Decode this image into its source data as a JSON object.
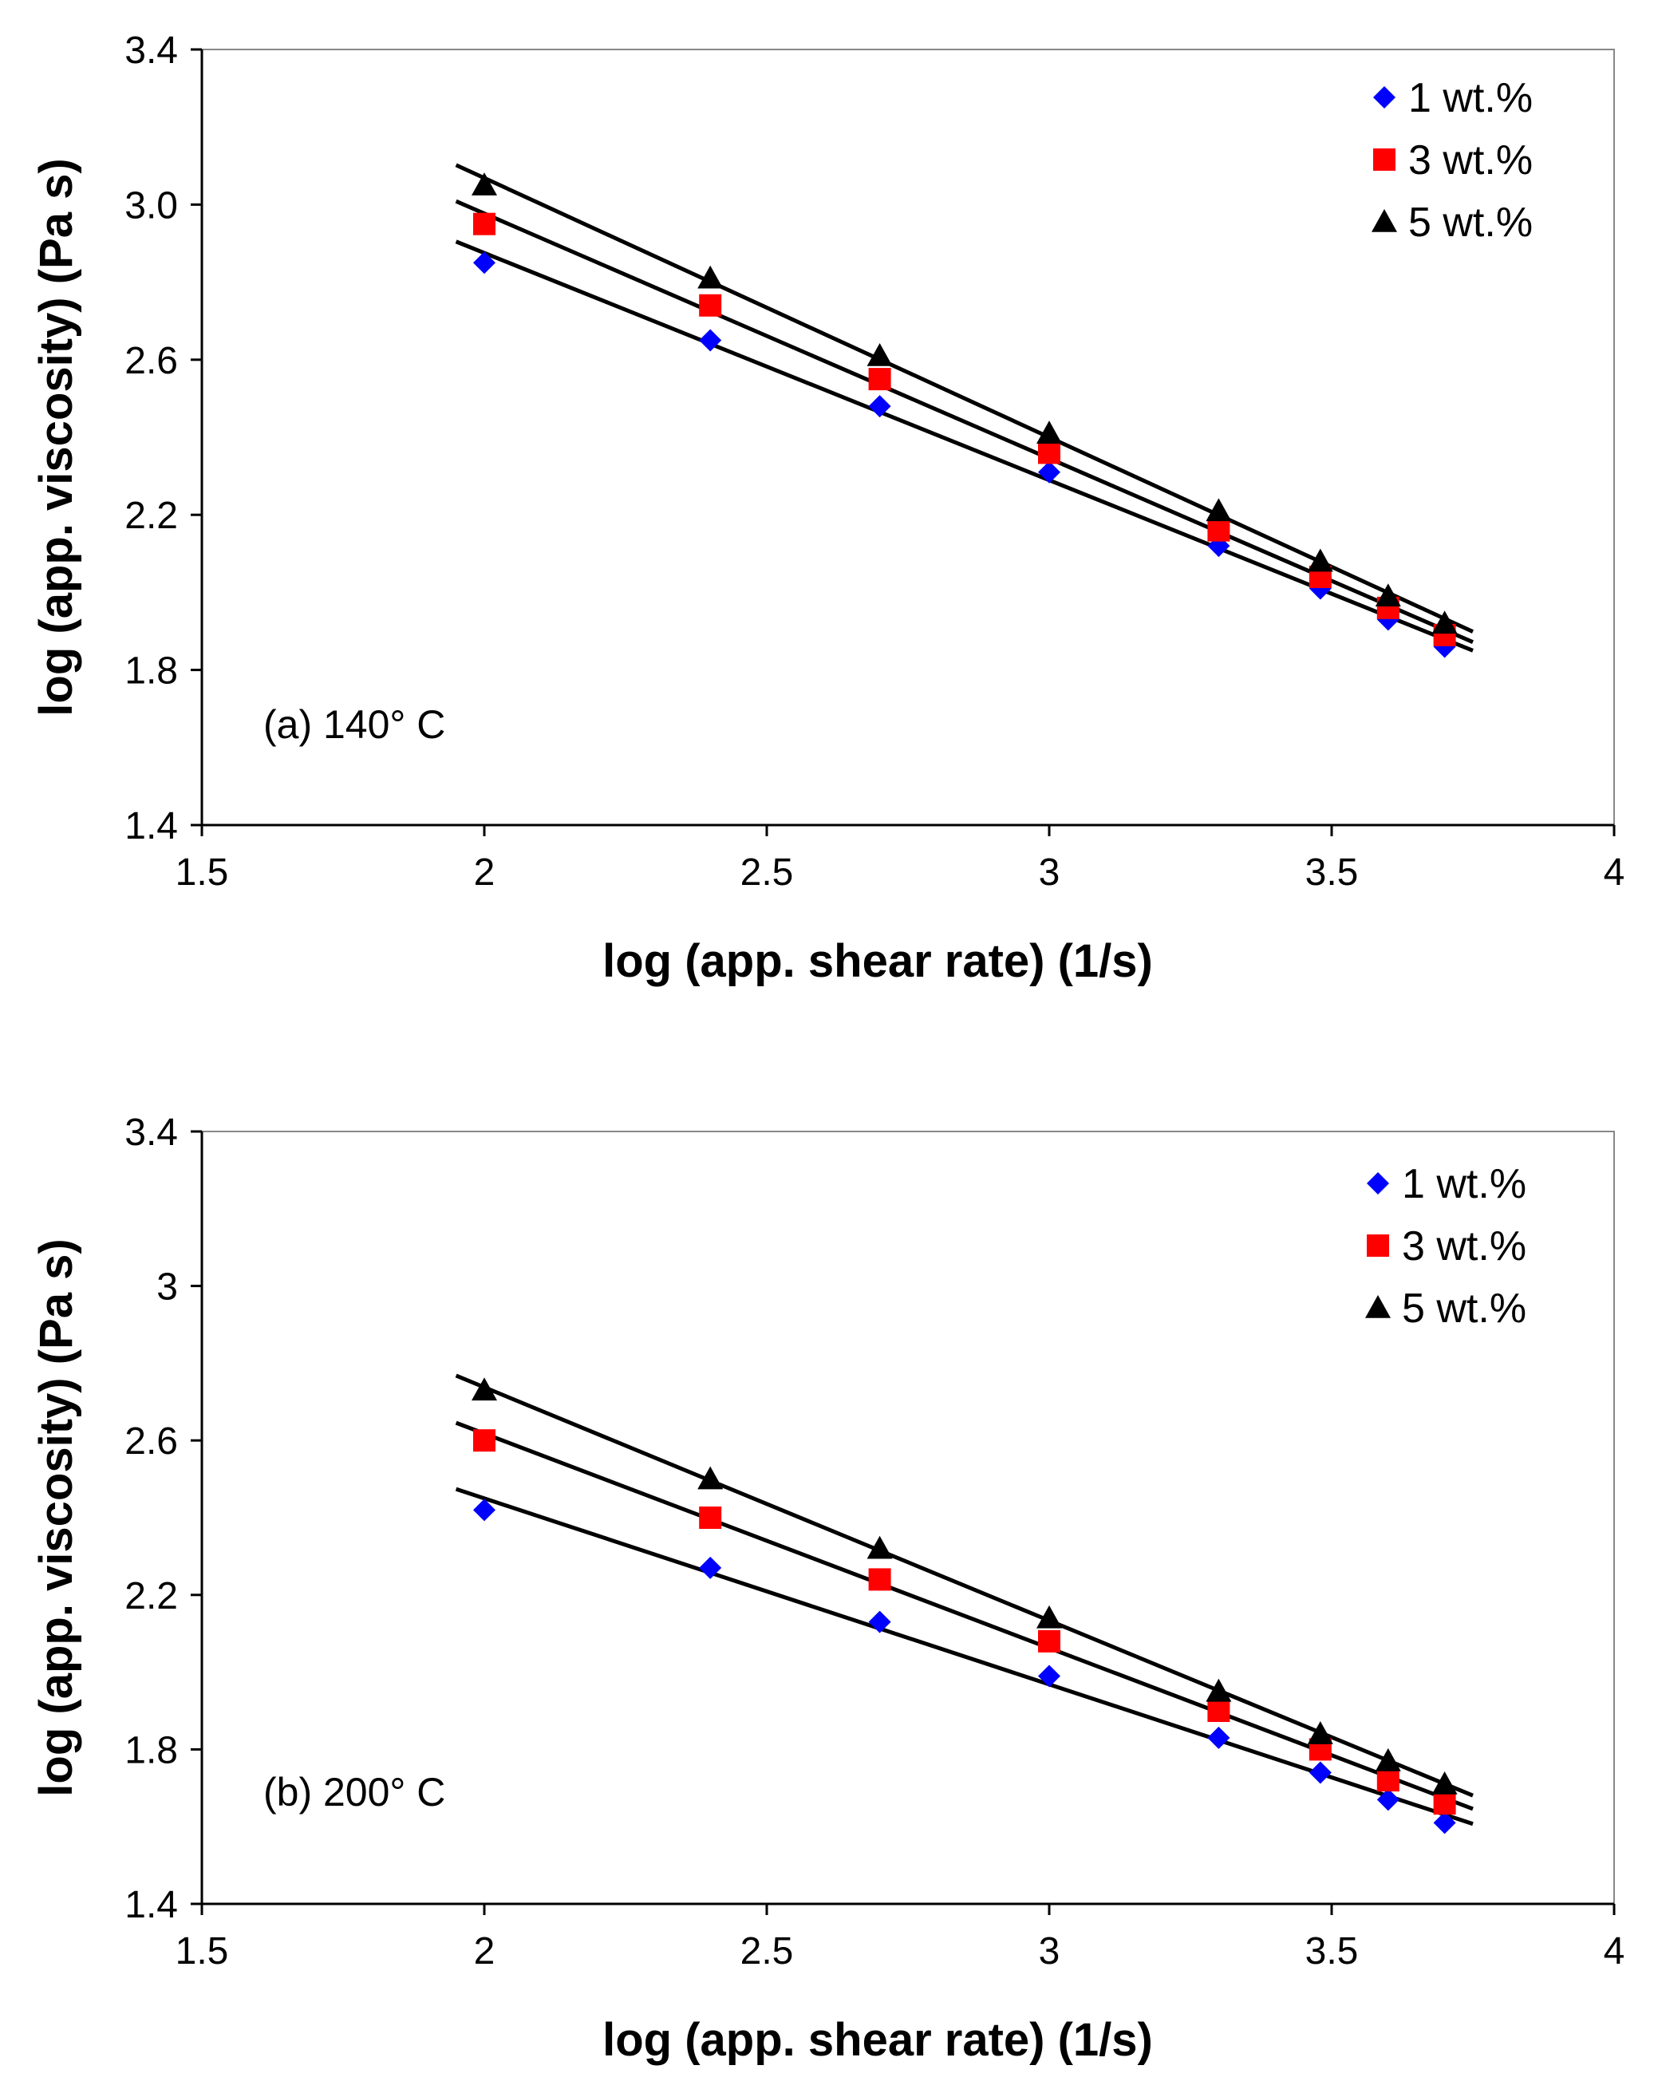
{
  "chart_data": [
    {
      "type": "scatter",
      "xlabel": "log (app. shear rate) (1/s)",
      "ylabel": "log (app. viscosity) (Pa s)",
      "annotation": "(a) 140° C",
      "xlim": [
        1.5,
        4
      ],
      "ylim": [
        1.4,
        3.4
      ],
      "x_ticks": [
        "1.5",
        "2",
        "2.5",
        "3",
        "3.5",
        "4"
      ],
      "y_ticks": [
        "1.4",
        "1.8",
        "2.2",
        "2.6",
        "3.0",
        "3.4"
      ],
      "grid": false,
      "legend": "top-right",
      "trendlines": "linear",
      "trend_x_range": [
        1.95,
        3.75
      ],
      "series": [
        {
          "name": "1 wt.%",
          "marker": "diamond",
          "color": "#0000ff",
          "x": [
            2.0,
            2.4,
            2.7,
            3.0,
            3.3,
            3.48,
            3.6,
            3.7
          ],
          "y": [
            2.85,
            2.65,
            2.48,
            2.31,
            2.12,
            2.01,
            1.93,
            1.86
          ]
        },
        {
          "name": "3 wt.%",
          "marker": "square",
          "color": "#ff0000",
          "x": [
            2.0,
            2.4,
            2.7,
            3.0,
            3.3,
            3.48,
            3.6,
            3.7
          ],
          "y": [
            2.95,
            2.74,
            2.55,
            2.36,
            2.16,
            2.04,
            1.96,
            1.89
          ]
        },
        {
          "name": "5 wt.%",
          "marker": "triangle",
          "color": "#000000",
          "x": [
            2.0,
            2.4,
            2.7,
            3.0,
            3.3,
            3.48,
            3.6,
            3.7
          ],
          "y": [
            3.05,
            2.81,
            2.61,
            2.41,
            2.21,
            2.08,
            1.99,
            1.92
          ]
        }
      ]
    },
    {
      "type": "scatter",
      "xlabel": "log (app. shear rate) (1/s)",
      "ylabel": "log (app. viscosity) (Pa s)",
      "annotation": "(b) 200° C",
      "xlim": [
        1.5,
        4
      ],
      "ylim": [
        1.4,
        3.4
      ],
      "x_ticks": [
        "1.5",
        "2",
        "2.5",
        "3",
        "3.5",
        "4"
      ],
      "y_ticks": [
        "1.4",
        "1.8",
        "2.2",
        "2.6",
        "3",
        "3.4"
      ],
      "grid": false,
      "legend": "top-right",
      "trendlines": "linear",
      "trend_x_range": [
        1.95,
        3.75
      ],
      "series": [
        {
          "name": "1 wt.%",
          "marker": "diamond",
          "color": "#0000ff",
          "x": [
            2.0,
            2.4,
            2.7,
            3.0,
            3.3,
            3.48,
            3.6,
            3.7
          ],
          "y": [
            2.42,
            2.27,
            2.13,
            1.99,
            1.83,
            1.74,
            1.67,
            1.61
          ]
        },
        {
          "name": "3 wt.%",
          "marker": "square",
          "color": "#ff0000",
          "x": [
            2.0,
            2.4,
            2.7,
            3.0,
            3.3,
            3.48,
            3.6,
            3.7
          ],
          "y": [
            2.6,
            2.4,
            2.24,
            2.08,
            1.9,
            1.8,
            1.72,
            1.66
          ]
        },
        {
          "name": "5 wt.%",
          "marker": "triangle",
          "color": "#000000",
          "x": [
            2.0,
            2.4,
            2.7,
            3.0,
            3.3,
            3.48,
            3.6,
            3.7
          ],
          "y": [
            2.73,
            2.5,
            2.32,
            2.14,
            1.95,
            1.84,
            1.77,
            1.71
          ]
        }
      ]
    }
  ]
}
